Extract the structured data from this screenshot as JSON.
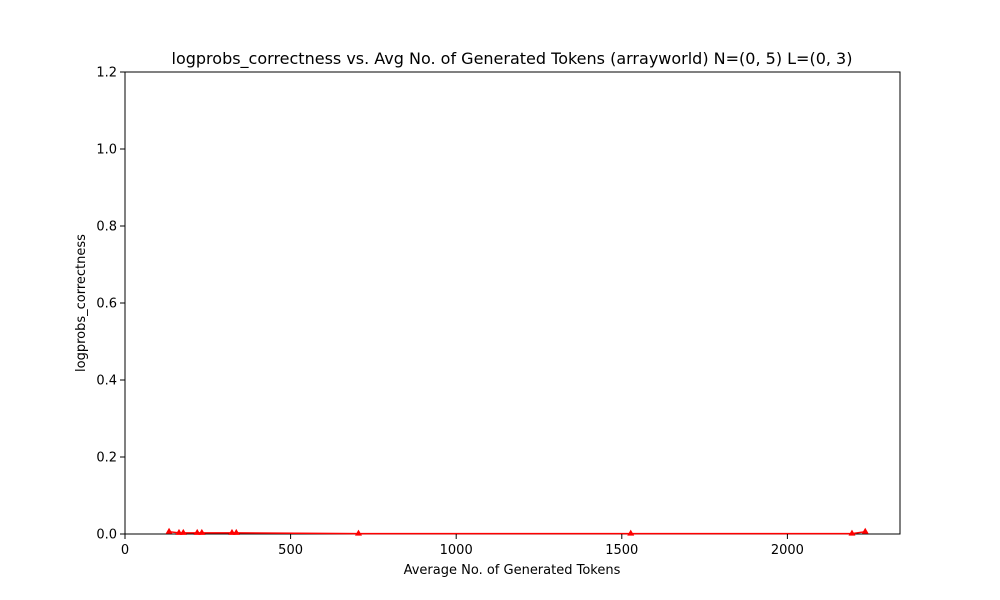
{
  "chart_data": {
    "type": "scatter",
    "title": "logprobs_correctness vs. Avg No. of Generated Tokens (arrayworld) N=(0, 5) L=(0, 3)",
    "xlabel": "Average No. of Generated Tokens",
    "ylabel": "logprobs_correctness",
    "xlim": [
      0,
      2340
    ],
    "ylim": [
      0,
      1.2
    ],
    "xticks": [
      0,
      500,
      1000,
      1500,
      2000
    ],
    "yticks": [
      0.0,
      0.2,
      0.4,
      0.6,
      0.8,
      1.0,
      1.2
    ],
    "xtick_labels": [
      "0",
      "500",
      "1000",
      "1500",
      "2000"
    ],
    "ytick_labels": [
      "0.0",
      "0.2",
      "0.4",
      "0.6",
      "0.8",
      "1.0",
      "1.2"
    ],
    "grid": false,
    "marker": "triangle",
    "color": "#ff0000",
    "series": [
      {
        "points": [
          {
            "x": 133,
            "y": 0.006
          },
          {
            "x": 163,
            "y": 0.003
          },
          {
            "x": 176,
            "y": 0.003
          },
          {
            "x": 218,
            "y": 0.003
          },
          {
            "x": 232,
            "y": 0.003
          },
          {
            "x": 323,
            "y": 0.003
          },
          {
            "x": 336,
            "y": 0.003
          },
          {
            "x": 705,
            "y": 0.001
          },
          {
            "x": 1527,
            "y": 0.001
          },
          {
            "x": 2195,
            "y": 0.001
          },
          {
            "x": 2235,
            "y": 0.006
          }
        ]
      }
    ]
  }
}
